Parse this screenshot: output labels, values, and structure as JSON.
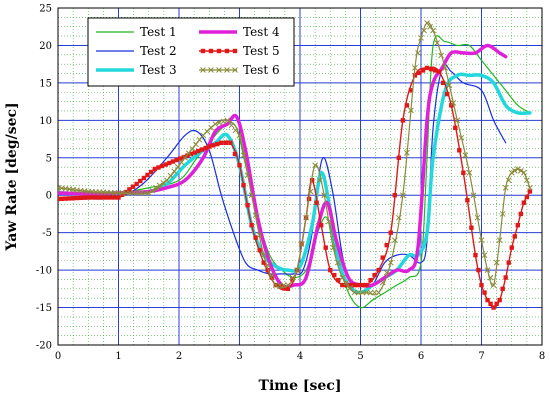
{
  "chart_data": {
    "type": "line",
    "title": "",
    "xlabel": "Time [sec]",
    "ylabel": "Yaw Rate [deg/sec]",
    "xlim": [
      0,
      8
    ],
    "ylim": [
      -20,
      25
    ],
    "xticks": [
      0,
      1,
      2,
      3,
      4,
      5,
      6,
      7,
      8
    ],
    "yticks": [
      -20,
      -15,
      -10,
      -5,
      0,
      5,
      10,
      15,
      20,
      25
    ],
    "grid": true,
    "grid_style": "dotted",
    "legend_position": "top-center",
    "series": [
      {
        "name": "Test 1",
        "color": "#22b822",
        "width": 1.2,
        "marker": "none",
        "x": [
          0,
          0.5,
          1,
          1.5,
          2,
          2.3,
          2.6,
          2.8,
          2.95,
          3.1,
          3.3,
          3.5,
          3.7,
          3.9,
          4.1,
          4.25,
          4.4,
          4.5,
          4.6,
          4.8,
          5.0,
          5.2,
          5.4,
          5.6,
          5.8,
          6.0,
          6.1,
          6.2,
          6.4,
          6.6,
          6.8,
          7.0,
          7.2,
          7.4,
          7.6,
          7.8
        ],
        "y": [
          0.5,
          0.2,
          0.3,
          1,
          2,
          5,
          8,
          9.5,
          9,
          4,
          -3,
          -8,
          -10,
          -11,
          -10,
          -6,
          -3,
          -4,
          -8,
          -13,
          -15,
          -14,
          -13,
          -12,
          -11,
          -9,
          5,
          20,
          20.5,
          20,
          20,
          18,
          16,
          14,
          12,
          11
        ]
      },
      {
        "name": "Test 2",
        "color": "#1a2ee0",
        "width": 1.2,
        "marker": "none",
        "x": [
          0,
          0.5,
          1,
          1.4,
          1.8,
          2.1,
          2.3,
          2.5,
          2.7,
          2.9,
          3.1,
          3.3,
          3.5,
          3.7,
          3.9,
          4.05,
          4.2,
          4.3,
          4.4,
          4.55,
          4.7,
          4.85,
          5.0,
          5.2,
          5.4,
          5.6,
          5.8,
          6.0,
          6.1,
          6.2,
          6.35,
          6.5,
          6.7,
          7.0,
          7.2,
          7.4
        ],
        "y": [
          -0.5,
          -0.5,
          -0.3,
          1.5,
          5,
          8,
          8.5,
          6,
          0,
          -5,
          -9,
          -10,
          -10.5,
          -10.5,
          -10.5,
          -10,
          -5,
          2,
          5,
          0,
          -8,
          -12,
          -13,
          -12,
          -9,
          -8,
          -8,
          -9,
          -6,
          9,
          17,
          16.5,
          15,
          14,
          10,
          7
        ]
      },
      {
        "name": "Test 3",
        "color": "#22d8dc",
        "width": 3.5,
        "marker": "none",
        "x": [
          0,
          0.5,
          1,
          1.5,
          1.8,
          2.1,
          2.4,
          2.6,
          2.8,
          3.0,
          3.2,
          3.4,
          3.6,
          3.8,
          4.0,
          4.2,
          4.35,
          4.5,
          4.65,
          4.8,
          5.0,
          5.2,
          5.4,
          5.6,
          5.8,
          5.95,
          6.1,
          6.2,
          6.4,
          6.6,
          6.8,
          7.0,
          7.2,
          7.4,
          7.6,
          7.8
        ],
        "y": [
          0.3,
          0.2,
          0.3,
          0.5,
          1.5,
          4,
          6,
          7,
          8,
          4,
          -4,
          -8,
          -9.5,
          -10,
          -9.5,
          -4,
          3,
          -2,
          -9,
          -12,
          -13,
          -12,
          -11,
          -10,
          -8,
          -8,
          -5,
          5,
          14,
          16,
          16,
          16,
          15,
          12,
          11,
          11
        ]
      },
      {
        "name": "Test 4",
        "color": "#e020d8",
        "width": 3.5,
        "marker": "none",
        "x": [
          0,
          0.5,
          1,
          1.5,
          1.8,
          2.1,
          2.4,
          2.6,
          2.8,
          2.95,
          3.1,
          3.3,
          3.5,
          3.7,
          3.9,
          4.1,
          4.3,
          4.45,
          4.6,
          4.8,
          5.0,
          5.2,
          5.4,
          5.6,
          5.8,
          5.95,
          6.1,
          6.2,
          6.35,
          6.5,
          6.7,
          6.9,
          7.1,
          7.3,
          7.4
        ],
        "y": [
          0.3,
          0.2,
          0.3,
          0.5,
          1,
          2,
          5,
          8.5,
          9.5,
          10.5,
          6,
          -3,
          -9,
          -12,
          -12,
          -11,
          -4,
          -1,
          -6,
          -11,
          -12,
          -12,
          -11,
          -10,
          -10,
          -7,
          10,
          15,
          17,
          19,
          19,
          19,
          20,
          19,
          18.5
        ]
      },
      {
        "name": "Test 5",
        "color": "#e01818",
        "width": 1.4,
        "marker": "square",
        "x": [
          0,
          0.5,
          1,
          1.3,
          1.6,
          1.9,
          2.2,
          2.5,
          2.7,
          2.85,
          3.0,
          3.2,
          3.4,
          3.6,
          3.8,
          3.95,
          4.1,
          4.2,
          4.35,
          4.5,
          4.7,
          4.9,
          5.1,
          5.3,
          5.5,
          5.7,
          5.9,
          6.1,
          6.3,
          6.5,
          6.7,
          6.9,
          7.0,
          7.1,
          7.2,
          7.3,
          7.4,
          7.5,
          7.6,
          7.7,
          7.8
        ],
        "y": [
          -0.5,
          -0.3,
          -0.3,
          1.5,
          3.5,
          4.5,
          5.5,
          6.5,
          7,
          7,
          4,
          -4,
          -9,
          -12,
          -12.5,
          -10,
          -3,
          2,
          -4,
          -10,
          -12,
          -12,
          -12,
          -10,
          -5,
          10,
          16,
          17,
          16.5,
          12,
          3,
          -8,
          -12,
          -14,
          -15,
          -14,
          -11,
          -7,
          -4,
          -1,
          0.5
        ]
      },
      {
        "name": "Test 6",
        "color": "#8a8a3a",
        "width": 1.2,
        "marker": "cross",
        "x": [
          0,
          0.5,
          1,
          1.5,
          1.8,
          2.1,
          2.4,
          2.6,
          2.8,
          3.0,
          3.2,
          3.4,
          3.6,
          3.8,
          3.95,
          4.1,
          4.25,
          4.4,
          4.55,
          4.7,
          4.9,
          5.1,
          5.3,
          5.5,
          5.7,
          5.9,
          6.0,
          6.1,
          6.2,
          6.4,
          6.6,
          6.8,
          7.0,
          7.1,
          7.2,
          7.3,
          7.4,
          7.5,
          7.6,
          7.7,
          7.8
        ],
        "y": [
          1,
          0.5,
          0.3,
          0.3,
          2,
          5,
          8,
          9.5,
          10,
          8,
          0,
          -8,
          -12,
          -12,
          -10,
          -3,
          4,
          0,
          -7,
          -11,
          -13,
          -13,
          -13,
          -9,
          0,
          17,
          21,
          23,
          22,
          17,
          10,
          3,
          -6,
          -10,
          -12,
          -6,
          1,
          3,
          3.5,
          3,
          1
        ]
      }
    ]
  }
}
